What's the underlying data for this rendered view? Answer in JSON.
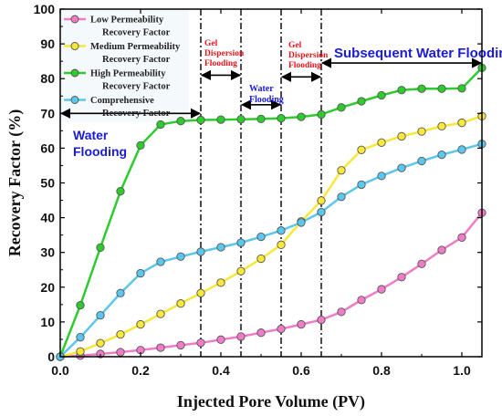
{
  "chart_data": {
    "type": "line",
    "xlabel": "Injected Pore Volume (PV)",
    "ylabel": "Recovery Factor (%)",
    "xlim": [
      0,
      1.05
    ],
    "ylim": [
      0,
      100
    ],
    "xticks": [
      "0.0",
      "0.2",
      "0.4",
      "0.6",
      "0.8",
      "1.0"
    ],
    "xtick_values": [
      0,
      0.2,
      0.4,
      0.6,
      0.8,
      1.0
    ],
    "yticks": [
      "0",
      "10",
      "20",
      "30",
      "40",
      "50",
      "60",
      "70",
      "80",
      "90",
      "100"
    ],
    "ytick_values": [
      0,
      10,
      20,
      30,
      40,
      50,
      60,
      70,
      80,
      90,
      100
    ],
    "grid": false,
    "legend_position": "top-left",
    "x": [
      0,
      0.05,
      0.1,
      0.15,
      0.2,
      0.25,
      0.3,
      0.35,
      0.4,
      0.45,
      0.5,
      0.55,
      0.6,
      0.65,
      0.7,
      0.75,
      0.8,
      0.85,
      0.9,
      0.95,
      1.0,
      1.05
    ],
    "series": [
      {
        "name": "Low Permeability Recovery Factor",
        "legend_lines": [
          "Low Permeability",
          "Recovery Factor"
        ],
        "color": "#f07cc8",
        "values": [
          0,
          0.3,
          0.8,
          1.3,
          1.9,
          2.6,
          3.3,
          4.0,
          4.9,
          5.8,
          6.9,
          8.0,
          9.3,
          10.6,
          12.9,
          16.3,
          19.4,
          22.9,
          26.7,
          30.7,
          34.3,
          41.4
        ]
      },
      {
        "name": "Medium Permeability Recovery Factor",
        "legend_lines": [
          "Medium Permeability",
          "Recovery Factor"
        ],
        "color": "#f7e83a",
        "values": [
          0,
          1.5,
          3.9,
          6.4,
          9.3,
          12.3,
          15.3,
          18.3,
          21.3,
          24.6,
          28.2,
          32.2,
          38.9,
          44.9,
          53.6,
          59.5,
          61.6,
          63.4,
          64.8,
          66.3,
          67.3,
          69.2
        ]
      },
      {
        "name": "High Permeability Recovery Factor",
        "legend_lines": [
          "High Permeability",
          "Recovery Factor"
        ],
        "color": "#2ecb2e",
        "values": [
          0,
          14.8,
          31.4,
          47.6,
          60.8,
          66.8,
          67.8,
          68.1,
          68.2,
          68.3,
          68.4,
          68.6,
          69.0,
          69.7,
          71.7,
          73.5,
          75.2,
          76.7,
          77.1,
          77.1,
          77.2,
          83.1
        ]
      },
      {
        "name": "Comprehensive Recovery Factor",
        "legend_lines": [
          "Comprehensive",
          "Recovery Factor"
        ],
        "color": "#5bc7ec",
        "values": [
          0,
          5.6,
          11.9,
          18.3,
          24.0,
          27.3,
          28.8,
          30.2,
          31.5,
          32.8,
          34.5,
          36.3,
          38.6,
          41.6,
          46.0,
          49.5,
          52.0,
          54.3,
          56.3,
          58.1,
          59.6,
          61.2
        ]
      }
    ],
    "vertical_lines_x": [
      0.35,
      0.45,
      0.55,
      0.65
    ],
    "annotations": [
      {
        "id": "water-flooding-1",
        "lines": [
          "Water",
          "Flooding"
        ],
        "color": "#1a1ad8",
        "arrow_x": [
          0,
          0.35
        ],
        "arrow_y": 70
      },
      {
        "id": "gel-dispersion-1",
        "lines": [
          "Gel",
          "Dispersion",
          "Flooding"
        ],
        "color": "#e8141b",
        "arrow_x": [
          0.35,
          0.45
        ],
        "arrow_y": 81
      },
      {
        "id": "water-flooding-2",
        "lines": [
          "Water",
          "Flooding"
        ],
        "color": "#1a1ad8",
        "arrow_x": [
          0.45,
          0.55
        ],
        "arrow_y": 72.5
      },
      {
        "id": "gel-dispersion-2",
        "lines": [
          "Gel",
          "Dispersion",
          "Flooding"
        ],
        "color": "#e8141b",
        "arrow_x": [
          0.55,
          0.65
        ],
        "arrow_y": 80.5
      },
      {
        "id": "subsequent-water-flooding",
        "lines": [
          "Subsequent Water Flooding"
        ],
        "color": "#1a1ad8",
        "arrow_x": [
          0.65,
          1.05
        ],
        "arrow_y": 84.5
      }
    ]
  }
}
